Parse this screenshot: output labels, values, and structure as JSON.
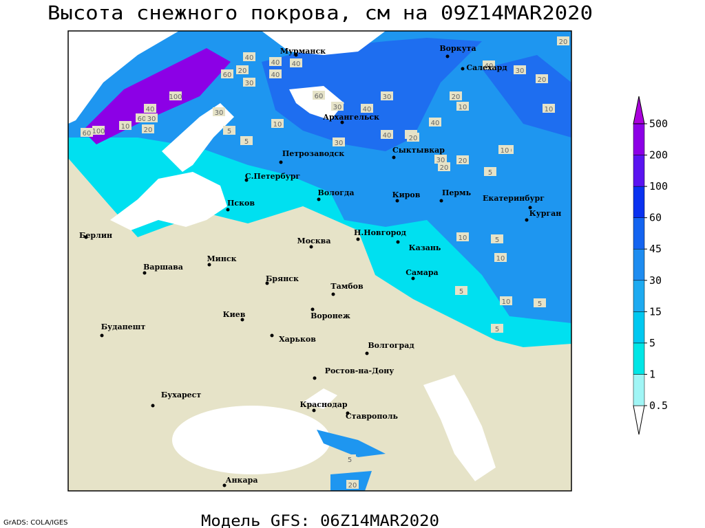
{
  "title": "Высота снежного покрова, см на 09Z14MAR2020",
  "footer": {
    "credit": "GrADS: COLA/IGES",
    "model": "Модель GFS: 06Z14MAR2020"
  },
  "cities": [
    "Мурманск",
    "Воркута",
    "Салехард",
    "Архангельск",
    "Петрозаводск",
    "Сыктывкар",
    "С.Петербург",
    "Вологда",
    "Киров",
    "Пермь",
    "Екатеринбург",
    "Курган",
    "Псков",
    "Берлин",
    "Москва",
    "Н.Новгород",
    "Казань",
    "Минск",
    "Варшава",
    "Самара",
    "Брянск",
    "Тамбов",
    "Киев",
    "Воронеж",
    "Будапешт",
    "Харьков",
    "Волгоград",
    "Ростов-на-Дону",
    "Бухарест",
    "Краснодар",
    "Ставрополь",
    "Анкара"
  ],
  "contour_labels": [
    "20",
    "40",
    "40",
    "40",
    "60",
    "20",
    "30",
    "40",
    "100",
    "40",
    "60",
    "30",
    "20",
    "100",
    "60",
    "10",
    "30",
    "60",
    "30",
    "40",
    "30",
    "40",
    "30",
    "20",
    "10",
    "30",
    "40",
    "20",
    "10",
    "40",
    "30",
    "20",
    "10",
    "5",
    "5",
    "10",
    "5",
    "5",
    "10",
    "10",
    "5",
    "5",
    "20",
    "30",
    "10",
    "5",
    "20",
    "10",
    "5",
    "20"
  ],
  "legend": {
    "levels": [
      0.5,
      1,
      5,
      15,
      30,
      45,
      60,
      100,
      200,
      500
    ],
    "colors": [
      "#ffffff",
      "#a0f5f5",
      "#00e6e6",
      "#00c8f0",
      "#1eaaf0",
      "#1e8cf0",
      "#1464f0",
      "#0a32f0",
      "#5a14f0",
      "#8c00e6",
      "#aa00dc"
    ]
  }
}
